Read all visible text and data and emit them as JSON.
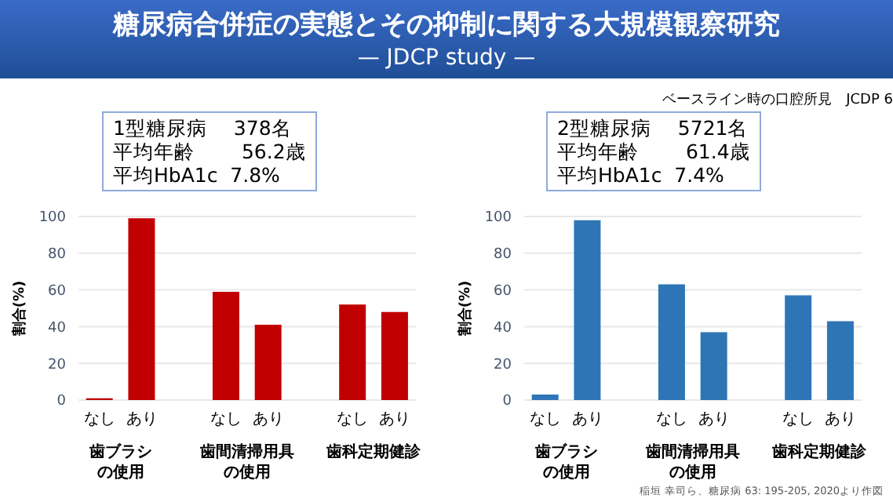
{
  "chart_data": [
    {
      "type": "bar",
      "title": "糖尿病合併症の実態とその抑制に関する大規模観察研究",
      "subtitle": "— JDCP study —",
      "ylabel": "割合(%)",
      "categories": [
        "なし",
        "あり",
        null,
        "なし",
        "あり",
        null,
        "なし",
        "あり"
      ],
      "series": [
        {
          "color": "#c00000",
          "values": [
            1,
            99,
            null,
            59,
            41,
            null,
            52,
            48
          ]
        }
      ],
      "ylim": [
        0,
        100
      ],
      "yticks": [
        0,
        20,
        40,
        60,
        80,
        100
      ],
      "grid": "y",
      "legend": false,
      "annotations": [
        "1型糖尿病　 378名",
        "平均年齢　　 56.2歳",
        "平均HbA1c  7.8%",
        "歯ブラシの使用",
        "歯間清掃用具の使用",
        "歯科定期健診"
      ]
    },
    {
      "type": "bar",
      "subtitle": "ベースライン時の口腔所見　JCDP 6",
      "ylabel": "割合(%)",
      "categories": [
        "なし",
        "あり",
        null,
        "なし",
        "あり",
        null,
        "なし",
        "あり"
      ],
      "series": [
        {
          "color": "#2e75b6",
          "values": [
            3,
            98,
            null,
            63,
            37,
            null,
            57,
            43
          ]
        }
      ],
      "ylim": [
        0,
        100
      ],
      "yticks": [
        0,
        20,
        40,
        60,
        80,
        100
      ],
      "grid": "y",
      "legend": false,
      "annotations": [
        "2型糖尿病　 5721名",
        "平均年齢　　 61.4歳",
        "平均HbA1c  7.4%",
        "歯ブラシの使用",
        "歯間清掃用具の使用",
        "歯科定期健診",
        "稲垣 幸司ら、糖尿病 63: 195-205, 2020より作図"
      ]
    }
  ]
}
